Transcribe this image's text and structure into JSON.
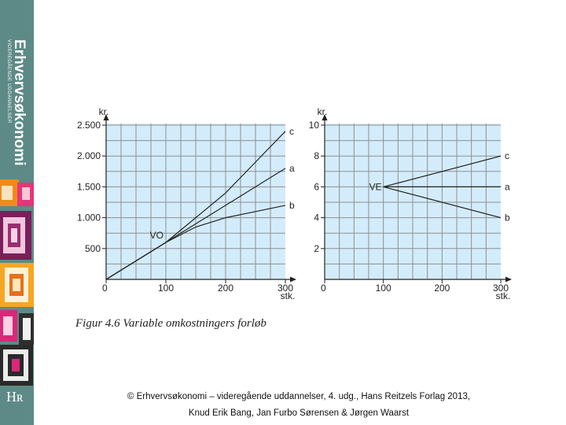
{
  "sidebar": {
    "title": "Erhvervsøkonomi",
    "subtitle": "VIDEREGÅENDE UDDANNELSER",
    "logo": "Hʀ"
  },
  "chart_data": [
    {
      "type": "line",
      "xlabel": "stk.",
      "ylabel": "kr.",
      "xlim": [
        0,
        300
      ],
      "ylim": [
        0,
        2500
      ],
      "xticks": [
        "0",
        "100",
        "200",
        "300"
      ],
      "yticks": [
        "500",
        "1.000",
        "1.500",
        "2.000",
        "2.500"
      ],
      "grid": true,
      "annotation": "VO",
      "series": [
        {
          "name": "c",
          "x": [
            0,
            100,
            150,
            200,
            250,
            300
          ],
          "y": [
            0,
            600,
            1000,
            1400,
            1900,
            2400
          ]
        },
        {
          "name": "a",
          "x": [
            0,
            100,
            150,
            200,
            250,
            300
          ],
          "y": [
            0,
            600,
            900,
            1200,
            1500,
            1800
          ]
        },
        {
          "name": "b",
          "x": [
            0,
            100,
            150,
            200,
            250,
            300
          ],
          "y": [
            0,
            600,
            850,
            1000,
            1100,
            1200
          ]
        }
      ]
    },
    {
      "type": "line",
      "xlabel": "stk.",
      "ylabel": "kr.",
      "xlim": [
        0,
        300
      ],
      "ylim": [
        0,
        10
      ],
      "xticks": [
        "0",
        "100",
        "200",
        "300"
      ],
      "yticks": [
        "2",
        "4",
        "6",
        "8",
        "10"
      ],
      "grid": true,
      "annotation": "VE",
      "series": [
        {
          "name": "c",
          "x": [
            100,
            300
          ],
          "y": [
            6,
            8
          ]
        },
        {
          "name": "a",
          "x": [
            100,
            300
          ],
          "y": [
            6,
            6
          ]
        },
        {
          "name": "b",
          "x": [
            100,
            300
          ],
          "y": [
            6,
            4
          ]
        }
      ]
    }
  ],
  "caption": "Figur 4.6 Variable omkostningers forløb",
  "footer": {
    "line1": "© Erhvervsøkonomi – videregående uddannelser, 4. udg., Hans Reitzels Forlag 2013,",
    "line2": "Knud Erik Bang, Jan Furbo Sørensen & Jørgen Waarst"
  }
}
